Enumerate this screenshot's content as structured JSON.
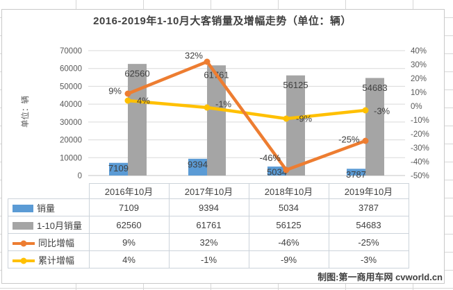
{
  "title": "2016-2019年1-10月大客销量及增幅走势（单位：辆）",
  "y_axis_title": "单位：辆",
  "footer_credit": "制图:第一商用车网 cvworld.cn",
  "colors": {
    "bar_monthly": "#5B9BD5",
    "bar_cumulative": "#A5A5A5",
    "line_yoy": "#ED7D31",
    "line_cumulative": "#FFC000",
    "gridline": "#D9D9D9",
    "axis_text": "#595959",
    "label_text": "#404040"
  },
  "chart_data": {
    "type": "bar",
    "subtype": "combo-bar-line",
    "title": "2016-2019年1-10月大客销量及增幅走势（单位：辆）",
    "categories": [
      "2016年10月",
      "2017年10月",
      "2018年10月",
      "2019年10月"
    ],
    "series": [
      {
        "name": "销量",
        "type": "bar",
        "axis": "left",
        "color": "#5B9BD5",
        "values": [
          7109,
          9394,
          5034,
          3787
        ]
      },
      {
        "name": "1-10月销量",
        "type": "bar",
        "axis": "left",
        "color": "#A5A5A5",
        "values": [
          62560,
          61761,
          56125,
          54683
        ]
      },
      {
        "name": "同比增幅",
        "type": "line",
        "axis": "right",
        "color": "#ED7D31",
        "values": [
          9,
          32,
          -46,
          -25
        ],
        "labels": [
          "9%",
          "32%",
          "-46%",
          "-25%"
        ]
      },
      {
        "name": "累计增幅",
        "type": "line",
        "axis": "right",
        "color": "#FFC000",
        "values": [
          4,
          -1,
          -9,
          -3
        ],
        "labels": [
          "4%",
          "-1%",
          "-9%",
          "-3%"
        ]
      }
    ],
    "left_axis": {
      "title": "单位：辆",
      "min": 0,
      "max": 70000,
      "step": 10000
    },
    "right_axis": {
      "min": -50,
      "max": 40,
      "step": 10,
      "suffix": "%"
    },
    "grid": true,
    "legend_position": "data-table-left",
    "data_table_shown": true
  }
}
